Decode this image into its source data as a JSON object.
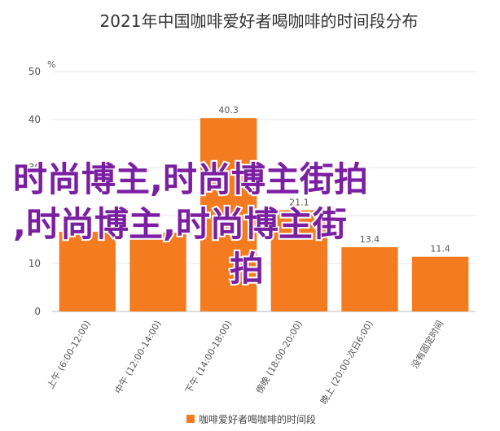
{
  "chart_data": {
    "type": "bar",
    "title": "2021年中国咖啡爱好者喝咖啡的时间段分布",
    "y_unit": "%",
    "ylim": [
      0,
      50
    ],
    "yticks": [
      0,
      10,
      20,
      30,
      40,
      50
    ],
    "grid": true,
    "categories": [
      "上午 (6:00-12:00)",
      "中午 (12:00-14:00)",
      "下午 (14:00-18:00)",
      "傍晚 (18:00-20:00)",
      "晚上 (20:00-次日6:00)",
      "没有固定时间"
    ],
    "series": [
      {
        "name": "咖啡爱好者喝咖啡的时间段",
        "color": "#f47b20",
        "values": [
          16.6,
          16.4,
          40.3,
          21.1,
          13.4,
          11.4
        ],
        "labels": [
          "",
          "",
          "40.3",
          "21.1",
          "13.4",
          "11.4"
        ]
      }
    ],
    "legend_position": "bottom"
  },
  "watermark": {
    "lines": [
      "时尚博主,时尚博主街拍",
      ",时尚博主,时尚博主街",
      "拍"
    ],
    "color": "#7b1fa2"
  }
}
